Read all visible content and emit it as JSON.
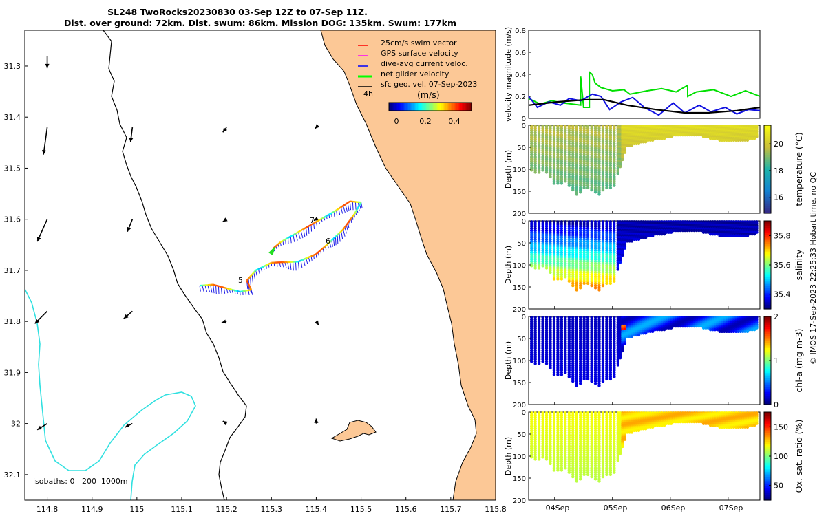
{
  "chart_data": {
    "type": "composite",
    "title_line1": "SL248 TwoRocks20230830 03-Sep 12Z to 07-Sep 11Z.",
    "title_line2": "Dist. over ground: 72km. Dist. swum: 86km. Mission DOG: 135km. Swum: 177km",
    "side_note": "© IMOS 17-Sep-2023 22:25:33 Hobart time. no QC",
    "map": {
      "type": "map",
      "xlim": [
        114.75,
        115.8
      ],
      "ylim": [
        -32.15,
        -31.23
      ],
      "x_ticks": [
        114.8,
        114.9,
        115,
        115.1,
        115.2,
        115.3,
        115.4,
        115.5,
        115.6,
        115.7,
        115.8
      ],
      "x_tick_labels": [
        "114.8",
        "114.9",
        "115",
        "115.1",
        "115.2",
        "115.3",
        "115.4",
        "115.5",
        "115.6",
        "115.7",
        "115.8"
      ],
      "y_ticks": [
        -31.3,
        -31.4,
        -31.5,
        -31.6,
        -31.7,
        -31.8,
        -31.9,
        -32,
        -32.1
      ],
      "y_tick_labels": [
        "31.3",
        "31.4",
        "31.5",
        "31.6",
        "31.7",
        "31.8",
        "31.9",
        "-32",
        "32.1"
      ],
      "legend": [
        {
          "label": "25cm/s swim vector",
          "color": "#ff0000"
        },
        {
          "label": "GPS surface velocity",
          "color": "#ff00ff"
        },
        {
          "label": "dive-avg current veloc.",
          "color": "#0000ff"
        },
        {
          "label": "net glider velocity",
          "color": "#00ff00"
        },
        {
          "label": "sfc geo. vel. 07-Sep-2023",
          "color": "#000000"
        }
      ],
      "colorbar": {
        "label": "(m/s)",
        "ticks": [
          "0",
          "0.2",
          "0.4"
        ],
        "range": [
          0,
          0.5
        ]
      },
      "isobath_note": "isobaths: 0   200  1000m",
      "day_labels": [
        "4h",
        "5",
        "6",
        "7"
      ],
      "glider_track": [
        [
          115.14,
          -31.73
        ],
        [
          115.17,
          -31.728
        ],
        [
          115.2,
          -31.735
        ],
        [
          115.23,
          -31.742
        ],
        [
          115.255,
          -31.738
        ],
        [
          115.245,
          -31.72
        ],
        [
          115.265,
          -31.7
        ],
        [
          115.3,
          -31.685
        ],
        [
          115.36,
          -31.683
        ],
        [
          115.4,
          -31.668
        ],
        [
          115.43,
          -31.645
        ],
        [
          115.46,
          -31.62
        ],
        [
          115.485,
          -31.59
        ],
        [
          115.5,
          -31.567
        ],
        [
          115.475,
          -31.565
        ],
        [
          115.44,
          -31.585
        ],
        [
          115.4,
          -31.605
        ],
        [
          115.36,
          -31.625
        ],
        [
          115.32,
          -31.645
        ],
        [
          115.3,
          -31.66
        ]
      ],
      "geo_vectors": [
        [
          114.8,
          -31.28,
          0.0,
          -1.0
        ],
        [
          114.8,
          -31.42,
          -0.3,
          -2.2
        ],
        [
          114.8,
          -31.6,
          -0.8,
          -1.8
        ],
        [
          114.8,
          -31.78,
          -1.0,
          -1.0
        ],
        [
          114.8,
          -32.0,
          -0.8,
          -0.5
        ],
        [
          114.99,
          -31.42,
          -0.15,
          -1.2
        ],
        [
          114.99,
          -31.6,
          -0.4,
          -1.0
        ],
        [
          114.99,
          -31.78,
          -0.7,
          -0.6
        ],
        [
          114.99,
          -32.0,
          -0.6,
          -0.3
        ],
        [
          115.2,
          -31.42,
          -0.3,
          -0.4
        ],
        [
          115.2,
          -31.6,
          -0.3,
          -0.2
        ],
        [
          115.2,
          -31.8,
          -0.4,
          -0.1
        ],
        [
          115.2,
          -32.0,
          -0.3,
          0.2
        ],
        [
          115.4,
          -31.42,
          -0.1,
          -0.1
        ],
        [
          115.4,
          -31.6,
          -0.2,
          -0.1
        ],
        [
          115.4,
          -31.8,
          0.2,
          -0.3
        ],
        [
          115.4,
          -32.0,
          0.0,
          0.4
        ]
      ]
    },
    "velocity": {
      "type": "line",
      "ylabel": "velocity magnitude (m/s)",
      "xlim": [
        0,
        4
      ],
      "ylim": [
        0,
        0.8
      ],
      "y_tick_labels": [
        "0",
        "0.2",
        "0.4",
        "0.6",
        "0.8"
      ],
      "series": [
        {
          "name": "net glider velocity",
          "color": "#00e000",
          "x": [
            0,
            0.2,
            0.4,
            0.6,
            0.9,
            0.9,
            0.95,
            1.05,
            1.05,
            1.1,
            1.15,
            1.25,
            1.45,
            1.65,
            1.75,
            2.05,
            2.3,
            2.55,
            2.75,
            2.75,
            2.9,
            3.2,
            3.5,
            3.75,
            3.9,
            4.0
          ],
          "y": [
            0.18,
            0.13,
            0.16,
            0.14,
            0.12,
            0.38,
            0.1,
            0.1,
            0.42,
            0.4,
            0.32,
            0.28,
            0.25,
            0.26,
            0.22,
            0.25,
            0.27,
            0.24,
            0.3,
            0.2,
            0.24,
            0.26,
            0.2,
            0.25,
            0.22,
            0.2
          ]
        },
        {
          "name": "dive-avg current",
          "color": "#1010e0",
          "x": [
            0,
            0.15,
            0.35,
            0.55,
            0.7,
            0.9,
            1.1,
            1.25,
            1.4,
            1.6,
            1.8,
            2.0,
            2.25,
            2.5,
            2.7,
            2.95,
            3.15,
            3.4,
            3.6,
            3.8,
            4.0
          ],
          "y": [
            0.2,
            0.1,
            0.15,
            0.12,
            0.18,
            0.16,
            0.22,
            0.2,
            0.08,
            0.15,
            0.19,
            0.1,
            0.03,
            0.14,
            0.05,
            0.12,
            0.06,
            0.1,
            0.04,
            0.08,
            0.07
          ]
        },
        {
          "name": "sfc geo. vel.",
          "color": "#000000",
          "x": [
            0,
            0.5,
            1.0,
            1.3,
            1.7,
            2.2,
            2.7,
            3.1,
            3.6,
            4.0
          ],
          "y": [
            0.12,
            0.15,
            0.17,
            0.17,
            0.12,
            0.08,
            0.05,
            0.05,
            0.07,
            0.1
          ]
        }
      ]
    },
    "sections": [
      {
        "name": "temperature",
        "label": "temperature (°C)",
        "cmin": 14.8,
        "cmax": 21.4,
        "cbar_ticks": [
          "16",
          "18",
          "20"
        ],
        "cbar_tick_values": [
          16,
          18,
          20
        ],
        "surface_value": 20.5,
        "deep_value": 19.0,
        "cmap": "parula",
        "ylabel": "Depth (m)",
        "depth_ticks": [
          "0",
          "50",
          "100",
          "150",
          "200"
        ]
      },
      {
        "name": "salinity",
        "label": "salinity",
        "cmin": 35.3,
        "cmax": 35.9,
        "cbar_ticks": [
          "35.4",
          "35.6",
          "35.8"
        ],
        "cbar_tick_values": [
          35.4,
          35.6,
          35.8
        ],
        "surface_value": 35.35,
        "deep_value": 35.5,
        "cmap": "jet",
        "ylabel": "Depth (m)",
        "depth_ticks": [
          "0",
          "50",
          "100",
          "150",
          "200"
        ]
      },
      {
        "name": "chl-a",
        "label": "chl-a (mg m-3)",
        "cmin": 0,
        "cmax": 2,
        "cbar_ticks": [
          "0",
          "1",
          "2"
        ],
        "cbar_tick_values": [
          0,
          1,
          2
        ],
        "surface_value": 0.45,
        "deep_value": 0.15,
        "cmap": "jet",
        "ylabel": "Depth (m)",
        "depth_ticks": [
          "0",
          "50",
          "100",
          "150",
          "200"
        ]
      },
      {
        "name": "oxygen",
        "label": "Ox. sat. ratio (%)",
        "cmin": 25,
        "cmax": 175,
        "cbar_ticks": [
          "50",
          "100",
          "150"
        ],
        "cbar_tick_values": [
          50,
          100,
          150
        ],
        "surface_value": 125,
        "deep_value": 118,
        "cmap": "jet",
        "ylabel": "Depth (m)",
        "depth_ticks": [
          "0",
          "50",
          "100",
          "150",
          "200"
        ]
      }
    ],
    "time_axis": {
      "labels": [
        "04Sep",
        "05Sep",
        "06Sep",
        "07Sep"
      ],
      "label_positions_days": [
        0.45,
        1.45,
        2.45,
        3.45
      ]
    }
  },
  "colors": {
    "land": "#fcc896",
    "coast_line": "#000000",
    "isobath_200": "#000000",
    "isobath_1000": "#30e0e0"
  }
}
